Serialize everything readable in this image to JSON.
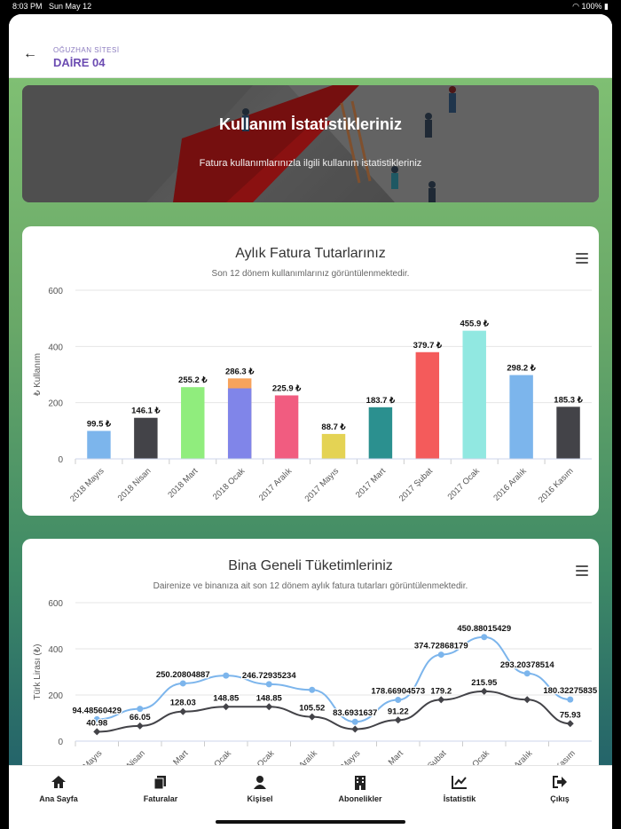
{
  "status_bar": {
    "time": "8:03 PM",
    "date": "Sun May 12",
    "battery": "100%"
  },
  "header": {
    "site_name": "OĞUZHAN SİTESİ",
    "flat_name": "DAİRE 04",
    "back_icon": "arrow-left-icon"
  },
  "hero": {
    "title": "Kullanım İstatistikleriniz",
    "subtitle": "Fatura kullanımlarınızla ilgili kullanım istatistikleriniz"
  },
  "chart_data": [
    {
      "type": "bar",
      "title": "Aylık Fatura Tutarlarınız",
      "subtitle": "Son 12 dönem kullanımlarınız görüntülenmektedir.",
      "ylabel": "₺ Kullanım",
      "ylim": [
        0,
        600
      ],
      "yticks": [
        "0",
        "200",
        "400",
        "600"
      ],
      "categories": [
        "2018 Mayıs",
        "2018 Nisan",
        "2018 Mart",
        "2018 Ocak",
        "2017 Aralık",
        "2017 Mayıs",
        "2017 Mart",
        "2017 Şubat",
        "2017 Ocak",
        "2016 Aralık",
        "2016 Kasım"
      ],
      "values": [
        99.5,
        146.1,
        255.2,
        286.3,
        225.9,
        88.7,
        183.7,
        379.7,
        455.9,
        298.2,
        185.3
      ],
      "data_labels": [
        "99.5 ₺",
        "146.1 ₺",
        "255.2 ₺",
        "286.3 ₺",
        "225.9 ₺",
        "88.7 ₺",
        "183.7 ₺",
        "379.7 ₺",
        "455.9 ₺",
        "298.2 ₺",
        "185.3 ₺"
      ],
      "stack_lower": [
        null,
        null,
        null,
        251,
        null,
        null,
        null,
        null,
        null,
        null,
        null
      ],
      "colors": [
        "#7cb5ec",
        "#434348",
        "#90ed7d",
        "#f7a35c",
        "#f15c80",
        "#e4d354",
        "#2b908f",
        "#f45b5b",
        "#91e8e1",
        "#7cb5ec",
        "#434348"
      ],
      "stack_lower_color": "#8085e9",
      "grid": true
    },
    {
      "type": "line",
      "title": "Bina Geneli Tüketimleriniz",
      "subtitle": "Dairenize ve binanıza ait son 12 dönem aylık fatura tutarları görüntülenmektedir.",
      "ylabel": "Türk Lirası (₺)",
      "ylim": [
        0,
        600
      ],
      "yticks": [
        "0",
        "200",
        "400",
        "600"
      ],
      "categories": [
        "Mayıs",
        "Nisan",
        "Mart",
        "Ocak",
        "Ocak",
        "Aralık",
        "Mayıs",
        "Mart",
        "Şubat",
        "Ocak",
        "Aralık",
        "Kasım"
      ],
      "series": [
        {
          "name": "",
          "color": "#7cb5ec",
          "values": [
            94.48560429,
            140,
            250.20804887,
            284,
            246.72935234,
            222,
            83.6931637,
            178.66904573,
            374.72868179,
            450.88015429,
            293.20378514,
            180.32275835
          ],
          "labels": [
            "94.48560429",
            "",
            "250.20804887",
            "",
            "246.72935234",
            "",
            "83.6931637",
            "178.66904573",
            "374.72868179",
            "450.88015429",
            "293.20378514",
            "180.32275835"
          ]
        },
        {
          "name": "",
          "color": "#434348",
          "values": [
            40.98,
            66.05,
            128.03,
            148.85,
            148.85,
            105.52,
            52,
            91.22,
            179.2,
            215.95,
            180,
            75.93
          ],
          "labels": [
            "40.98",
            "66.05",
            "128.03",
            "148.85",
            "148.85",
            "105.52",
            "",
            "91.22",
            "179.2",
            "215.95",
            "",
            "75.93"
          ]
        }
      ],
      "grid": true
    }
  ],
  "tabs": [
    {
      "label": "Ana Sayfa",
      "icon": "home-icon"
    },
    {
      "label": "Faturalar",
      "icon": "documents-icon"
    },
    {
      "label": "Kişisel",
      "icon": "user-icon"
    },
    {
      "label": "Abonelikler",
      "icon": "building-icon"
    },
    {
      "label": "İstatistik",
      "icon": "chart-line-icon"
    },
    {
      "label": "Çıkış",
      "icon": "sign-out-icon"
    }
  ]
}
